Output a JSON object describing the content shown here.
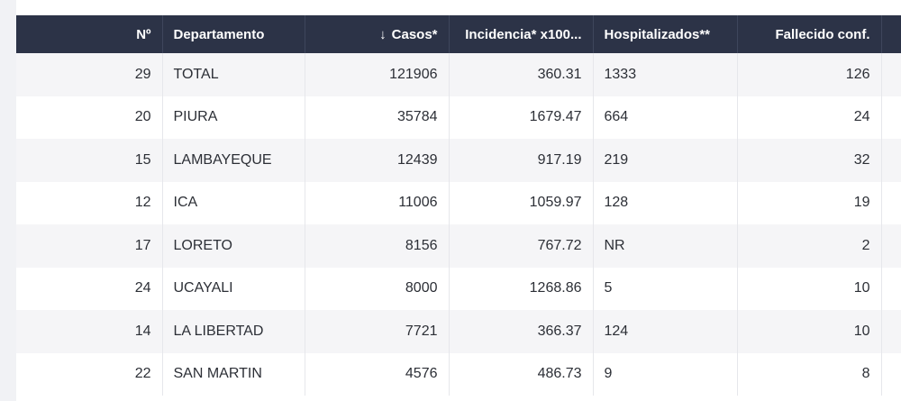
{
  "table": {
    "headers": {
      "no": "Nº",
      "departamento": "Departamento",
      "sort_arrow": "↓",
      "casos": "Casos*",
      "incidencia": "Incidencia* x100...",
      "hospitalizados": "Hospitalizados**",
      "fallecido": "Fallecido conf."
    },
    "rows": [
      {
        "no": "29",
        "departamento": "TOTAL",
        "casos": "121906",
        "incidencia": "360.31",
        "hospitalizados": "1333",
        "fallecido": "126"
      },
      {
        "no": "20",
        "departamento": "PIURA",
        "casos": "35784",
        "incidencia": "1679.47",
        "hospitalizados": "664",
        "fallecido": "24"
      },
      {
        "no": "15",
        "departamento": "LAMBAYEQUE",
        "casos": "12439",
        "incidencia": "917.19",
        "hospitalizados": "219",
        "fallecido": "32"
      },
      {
        "no": "12",
        "departamento": "ICA",
        "casos": "11006",
        "incidencia": "1059.97",
        "hospitalizados": "128",
        "fallecido": "19"
      },
      {
        "no": "17",
        "departamento": "LORETO",
        "casos": "8156",
        "incidencia": "767.72",
        "hospitalizados": "NR",
        "fallecido": "2"
      },
      {
        "no": "24",
        "departamento": "UCAYALI",
        "casos": "8000",
        "incidencia": "1268.86",
        "hospitalizados": "5",
        "fallecido": "10"
      },
      {
        "no": "14",
        "departamento": "LA LIBERTAD",
        "casos": "7721",
        "incidencia": "366.37",
        "hospitalizados": "124",
        "fallecido": "10"
      },
      {
        "no": "22",
        "departamento": "SAN MARTIN",
        "casos": "4576",
        "incidencia": "486.73",
        "hospitalizados": "9",
        "fallecido": "8"
      }
    ]
  }
}
